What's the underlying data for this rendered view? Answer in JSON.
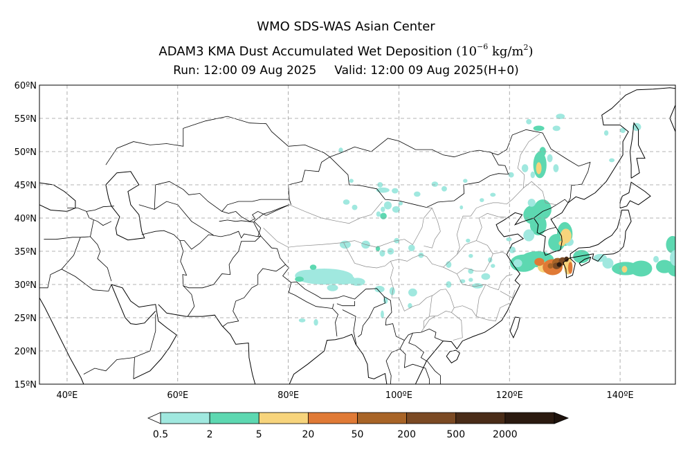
{
  "title": {
    "line1": "WMO SDS-WAS Asian Center",
    "line2_main": "ADAM3 KMA Dust Accumulated Wet Deposition",
    "line2_unit_open": "(10",
    "line2_unit_exp": "−6",
    "line2_unit_mid": " kg/m",
    "line2_unit_exp2": "2",
    "line2_unit_close": ")",
    "run": "Run: 12:00 09 Aug 2025",
    "valid": "Valid: 12:00 09 Aug 2025(H+0)"
  },
  "map": {
    "lon_range": [
      35,
      150
    ],
    "lat_range": [
      15,
      60
    ],
    "lat_ticks": [
      {
        "value": 60,
        "label": "60ºN"
      },
      {
        "value": 55,
        "label": "55ºN"
      },
      {
        "value": 50,
        "label": "50ºN"
      },
      {
        "value": 45,
        "label": "45ºN"
      },
      {
        "value": 40,
        "label": "40ºN"
      },
      {
        "value": 35,
        "label": "35ºN"
      },
      {
        "value": 30,
        "label": "30ºN"
      },
      {
        "value": 25,
        "label": "25ºN"
      },
      {
        "value": 20,
        "label": "20ºN"
      },
      {
        "value": 15,
        "label": "15ºN"
      }
    ],
    "lon_ticks": [
      {
        "value": 40,
        "label": "40ºE"
      },
      {
        "value": 60,
        "label": "60ºE"
      },
      {
        "value": 80,
        "label": "80ºE"
      },
      {
        "value": 100,
        "label": "100ºE"
      },
      {
        "value": 120,
        "label": "120ºE"
      },
      {
        "value": 140,
        "label": "140ºE"
      }
    ],
    "grid": true
  },
  "colorbar": {
    "colors": [
      "#a0e8df",
      "#5dd8b1",
      "#f7d47c",
      "#e07a36",
      "#a86427",
      "#7b4a24",
      "#4a2c18",
      "#2b1a10"
    ],
    "labels": [
      "0.5",
      "2",
      "5",
      "20",
      "50",
      "200",
      "500",
      "2000"
    ]
  }
}
